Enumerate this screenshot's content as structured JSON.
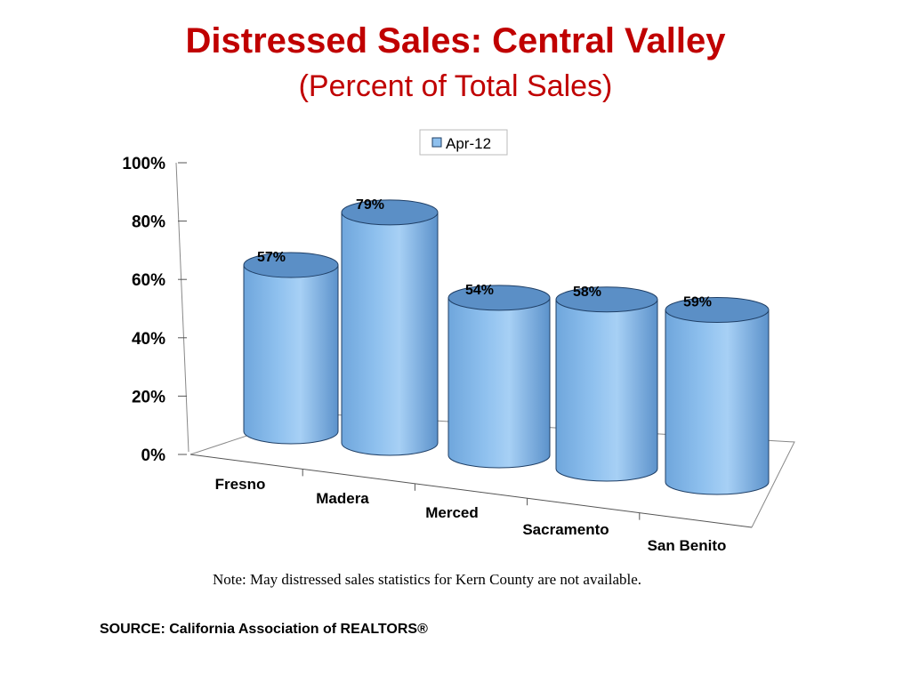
{
  "slide": {
    "note": "Note: May distressed sales statistics for Kern County are not available.",
    "source": "SOURCE: California Association of REALTORS®"
  },
  "chart_data": {
    "type": "bar",
    "title": "Distressed Sales: Central Valley",
    "subtitle": "(Percent of Total Sales)",
    "categories": [
      "Fresno",
      "Madera",
      "Merced",
      "Sacramento",
      "San Benito"
    ],
    "series": [
      {
        "name": "Apr-12",
        "values": [
          57,
          79,
          54,
          58,
          59
        ]
      }
    ],
    "data_labels": [
      "57%",
      "79%",
      "54%",
      "58%",
      "59%"
    ],
    "y_ticks": [
      "0%",
      "20%",
      "40%",
      "60%",
      "80%",
      "100%"
    ],
    "ylim": [
      0,
      100
    ],
    "legend_position": "top-center",
    "grid": false,
    "colors": {
      "bar_body": "#8ec0ee",
      "bar_top": "#5b8fc6",
      "bar_edge": "#1f3f66"
    }
  }
}
